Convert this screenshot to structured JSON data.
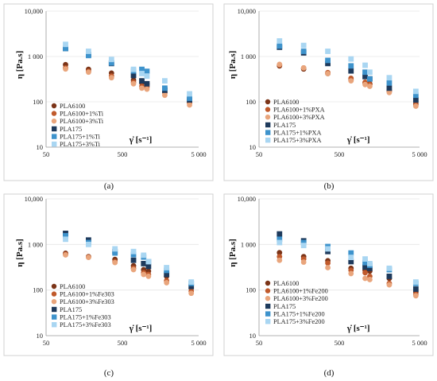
{
  "colors": {
    "PLA6100": "#7b3418",
    "PLA6100_1": "#c05a2c",
    "PLA6100_3": "#e9a57c",
    "PLA175": "#1e3a5c",
    "PLA175_1": "#3e93cc",
    "PLA175_3": "#a9d6f2"
  },
  "chart_data": [
    {
      "type": "scatter",
      "caption": "(a)",
      "ylabel": "η [Pa.s]",
      "xlabel": "γ̇ [s⁻¹]",
      "xscale": "log",
      "yscale": "log",
      "xlim": [
        50,
        5000
      ],
      "ylim": [
        10,
        10000
      ],
      "xticks": [
        "50",
        "500",
        "5 000"
      ],
      "yticks": [
        "10",
        "100",
        "1 000",
        "10,000"
      ],
      "legend_position": "bottom-left",
      "series": [
        {
          "name": "PLA6100",
          "color_key": "PLA6100",
          "marker": "circle",
          "x": [
            90,
            180,
            360,
            700,
            900,
            1050,
            1800,
            3800
          ],
          "y": [
            660,
            520,
            430,
            300,
            260,
            250,
            200,
            110
          ]
        },
        {
          "name": "PLA6100+1%Ti",
          "color_key": "PLA6100_1",
          "marker": "circle",
          "x": [
            90,
            180,
            360,
            700,
            900,
            1050,
            1800,
            3800
          ],
          "y": [
            560,
            470,
            370,
            270,
            220,
            210,
            160,
            95
          ]
        },
        {
          "name": "PLA6100+3%Ti",
          "color_key": "PLA6100_3",
          "marker": "circle",
          "x": [
            90,
            180,
            360,
            700,
            900,
            1050,
            1800,
            3800
          ],
          "y": [
            530,
            450,
            340,
            250,
            200,
            190,
            140,
            85
          ]
        },
        {
          "name": "PLA175",
          "color_key": "PLA175",
          "marker": "square",
          "x": [
            90,
            180,
            360,
            700,
            900,
            1050,
            1800,
            3800
          ],
          "y": [
            1500,
            1100,
            700,
            380,
            290,
            250,
            180,
            110
          ]
        },
        {
          "name": "PLA175+1%Ti",
          "color_key": "PLA175_1",
          "marker": "square",
          "x": [
            90,
            180,
            360,
            700,
            900,
            1050,
            1800,
            3800
          ],
          "y": [
            1500,
            1050,
            720,
            480,
            520,
            470,
            200,
            120
          ]
        },
        {
          "name": "PLA175+3%Ti",
          "color_key": "PLA175_3",
          "marker": "square",
          "x": [
            90,
            180,
            360,
            700,
            900,
            1050,
            1800,
            3800
          ],
          "y": [
            1850,
            1300,
            860,
            520,
            420,
            370,
            290,
            150
          ]
        }
      ]
    },
    {
      "type": "scatter",
      "caption": "(b)",
      "ylabel": "η [Pa.s]",
      "xlabel": "γ̇ [s⁻¹]",
      "xscale": "log",
      "yscale": "log",
      "xlim": [
        50,
        5000
      ],
      "ylim": [
        10,
        10000
      ],
      "xticks": [
        "50",
        "500",
        "5 000"
      ],
      "yticks": [
        "10",
        "100",
        "1 000",
        "10,000"
      ],
      "legend_position": "bottom-left",
      "series": [
        {
          "name": "PLA6100",
          "color_key": "PLA6100",
          "marker": "circle",
          "x": [
            90,
            180,
            360,
            700,
            1050,
            1200,
            2100,
            4500
          ],
          "y": [
            620,
            530,
            420,
            300,
            260,
            250,
            180,
            90
          ]
        },
        {
          "name": "PLA6100+1%PXA",
          "color_key": "PLA6100_1",
          "marker": "circle",
          "x": [
            90,
            180,
            360,
            700,
            1050,
            1200,
            2100,
            4500
          ],
          "y": [
            650,
            560,
            440,
            330,
            270,
            240,
            170,
            85
          ]
        },
        {
          "name": "PLA6100+3%PXA",
          "color_key": "PLA6100_3",
          "marker": "circle",
          "x": [
            90,
            180,
            360,
            700,
            1050,
            1200,
            2100,
            4500
          ],
          "y": [
            670,
            560,
            420,
            290,
            240,
            220,
            160,
            80
          ]
        },
        {
          "name": "PLA175",
          "color_key": "PLA175",
          "marker": "square",
          "x": [
            90,
            180,
            360,
            700,
            1050,
            1200,
            2100,
            4500
          ],
          "y": [
            1600,
            1200,
            700,
            480,
            360,
            320,
            200,
            110
          ]
        },
        {
          "name": "PLA175+1%PXA",
          "color_key": "PLA175_1",
          "marker": "square",
          "x": [
            90,
            180,
            360,
            700,
            1050,
            1200,
            2100,
            4500
          ],
          "y": [
            1700,
            1300,
            820,
            620,
            450,
            320,
            260,
            140
          ]
        },
        {
          "name": "PLA175+3%PXA",
          "color_key": "PLA175_3",
          "marker": "square",
          "x": [
            90,
            180,
            360,
            700,
            1050,
            1200,
            2100,
            4500
          ],
          "y": [
            2200,
            1750,
            1300,
            880,
            640,
            450,
            340,
            170
          ]
        }
      ]
    },
    {
      "type": "scatter",
      "caption": "(c)",
      "ylabel": "η [Pa.s]",
      "xlabel": "γ̇ [s⁻¹]",
      "xscale": "log",
      "yscale": "log",
      "xlim": [
        50,
        5000
      ],
      "ylim": [
        10,
        10000
      ],
      "xticks": [
        "50",
        "500",
        "5 000"
      ],
      "yticks": [
        "10",
        "100",
        "1 000",
        "10,000"
      ],
      "legend_position": "bottom-left",
      "series": [
        {
          "name": "PLA6100",
          "color_key": "PLA6100",
          "marker": "circle",
          "x": [
            90,
            180,
            400,
            700,
            950,
            1100,
            1900,
            4000
          ],
          "y": [
            640,
            540,
            470,
            340,
            280,
            260,
            200,
            110
          ]
        },
        {
          "name": "PLA6100+1%Fe303",
          "color_key": "PLA6100_1",
          "marker": "circle",
          "x": [
            90,
            180,
            400,
            700,
            950,
            1100,
            1900,
            4000
          ],
          "y": [
            610,
            530,
            420,
            300,
            240,
            220,
            160,
            95
          ]
        },
        {
          "name": "PLA6100+3%Fe303",
          "color_key": "PLA6100_3",
          "marker": "circle",
          "x": [
            90,
            180,
            400,
            700,
            950,
            1100,
            1900,
            4000
          ],
          "y": [
            590,
            520,
            400,
            280,
            220,
            200,
            145,
            85
          ]
        },
        {
          "name": "PLA175",
          "color_key": "PLA175",
          "marker": "square",
          "x": [
            90,
            180,
            400,
            700,
            950,
            1100,
            1900,
            4000
          ],
          "y": [
            1750,
            1250,
            700,
            450,
            380,
            330,
            220,
            120
          ]
        },
        {
          "name": "PLA175+1%Fe303",
          "color_key": "PLA175_1",
          "marker": "square",
          "x": [
            90,
            180,
            400,
            700,
            950,
            1100,
            1900,
            4000
          ],
          "y": [
            1550,
            1100,
            650,
            600,
            530,
            420,
            270,
            140
          ]
        },
        {
          "name": "PLA175+3%Fe303",
          "color_key": "PLA175_3",
          "marker": "square",
          "x": [
            90,
            180,
            400,
            700,
            950,
            1100,
            1900,
            4000
          ],
          "y": [
            1300,
            1000,
            800,
            700,
            580,
            420,
            310,
            150
          ]
        }
      ]
    },
    {
      "type": "scatter",
      "caption": "(d)",
      "ylabel": "η [Pa.s]",
      "xlabel": "γ̇ [s⁻¹]",
      "xscale": "log",
      "yscale": "log",
      "xlim": [
        50,
        5000
      ],
      "ylim": [
        10,
        10000
      ],
      "xticks": [
        "50",
        "500",
        "5 000"
      ],
      "yticks": [
        "10",
        "100",
        "1 000",
        "10,000"
      ],
      "legend_position": "bottom-left",
      "series": [
        {
          "name": "PLA6100",
          "color_key": "PLA6100",
          "marker": "circle",
          "x": [
            90,
            180,
            360,
            700,
            1050,
            1200,
            2100,
            4500
          ],
          "y": [
            660,
            540,
            440,
            300,
            270,
            260,
            180,
            90
          ]
        },
        {
          "name": "PLA6100+1%Fe200",
          "color_key": "PLA6100_1",
          "marker": "circle",
          "x": [
            90,
            180,
            360,
            700,
            1050,
            1200,
            2100,
            4500
          ],
          "y": [
            540,
            480,
            390,
            270,
            240,
            200,
            140,
            80
          ]
        },
        {
          "name": "PLA6100+3%Fe200",
          "color_key": "PLA6100_3",
          "marker": "circle",
          "x": [
            90,
            180,
            360,
            700,
            1050,
            1200,
            2100,
            4500
          ],
          "y": [
            450,
            410,
            310,
            230,
            180,
            170,
            130,
            75
          ]
        },
        {
          "name": "PLA175",
          "color_key": "PLA175",
          "marker": "square",
          "x": [
            90,
            180,
            360,
            700,
            1050,
            1200,
            2100,
            4500
          ],
          "y": [
            1700,
            1200,
            700,
            420,
            320,
            300,
            200,
            105
          ]
        },
        {
          "name": "PLA175+1%Fe200",
          "color_key": "PLA175_1",
          "marker": "square",
          "x": [
            90,
            180,
            360,
            700,
            1050,
            1200,
            2100,
            4500
          ],
          "y": [
            1300,
            1100,
            900,
            650,
            400,
            350,
            280,
            140
          ]
        },
        {
          "name": "PLA175+3%Fe200",
          "color_key": "PLA175_3",
          "marker": "square",
          "x": [
            90,
            180,
            360,
            700,
            1050,
            1200,
            2100,
            4500
          ],
          "y": [
            1100,
            950,
            800,
            520,
            480,
            380,
            300,
            150
          ]
        }
      ]
    }
  ]
}
